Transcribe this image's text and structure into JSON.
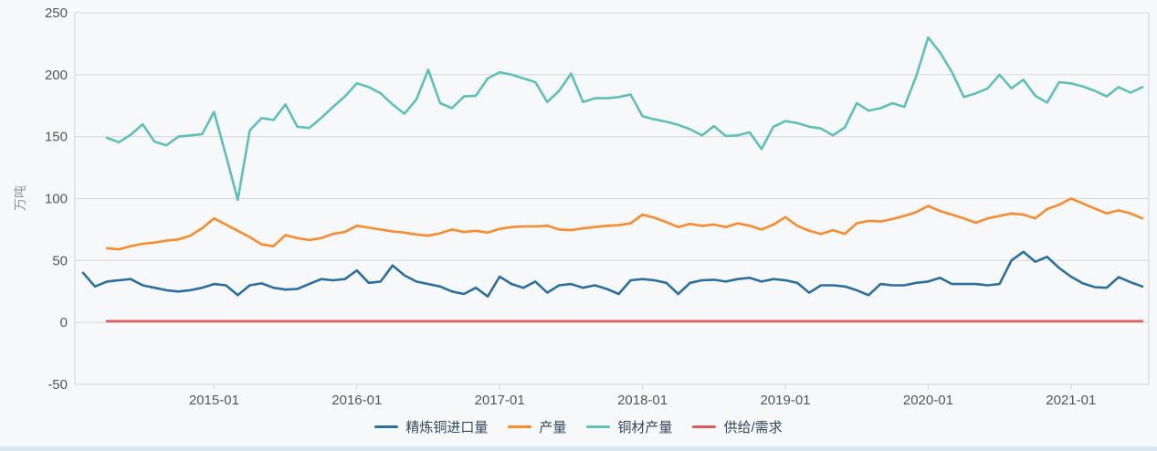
{
  "styles": {
    "background": "#f7f8fa",
    "grid_color": "#d7d7d7",
    "axis_color": "#ccd6e4",
    "tick_label_color": "#555555",
    "axis_title_color": "#90969c",
    "legend_text_color": "#33475b",
    "bottom_strip_color": "#dae5f2"
  },
  "chart_data": {
    "type": "line",
    "title": "",
    "grid": "horizontal",
    "legend_position": "bottom",
    "y_axis": {
      "label": "万吨",
      "min": -50,
      "max": 250,
      "tick_step": 50,
      "ticks": [
        250,
        200,
        150,
        100,
        50,
        0,
        -50
      ]
    },
    "x_axis": {
      "ticks": [
        "2015-01",
        "2016-01",
        "2017-01",
        "2018-01",
        "2019-01",
        "2020-01",
        "2021-01"
      ]
    },
    "months": [
      "2014-02",
      "2014-03",
      "2014-04",
      "2014-05",
      "2014-06",
      "2014-07",
      "2014-08",
      "2014-09",
      "2014-10",
      "2014-11",
      "2014-12",
      "2015-01",
      "2015-02",
      "2015-03",
      "2015-04",
      "2015-05",
      "2015-06",
      "2015-07",
      "2015-08",
      "2015-09",
      "2015-10",
      "2015-11",
      "2015-12",
      "2016-01",
      "2016-02",
      "2016-03",
      "2016-04",
      "2016-05",
      "2016-06",
      "2016-07",
      "2016-08",
      "2016-09",
      "2016-10",
      "2016-11",
      "2016-12",
      "2017-01",
      "2017-02",
      "2017-03",
      "2017-04",
      "2017-05",
      "2017-06",
      "2017-07",
      "2017-08",
      "2017-09",
      "2017-10",
      "2017-11",
      "2017-12",
      "2018-01",
      "2018-02",
      "2018-03",
      "2018-04",
      "2018-05",
      "2018-06",
      "2018-07",
      "2018-08",
      "2018-09",
      "2018-10",
      "2018-11",
      "2018-12",
      "2019-01",
      "2019-02",
      "2019-03",
      "2019-04",
      "2019-05",
      "2019-06",
      "2019-07",
      "2019-08",
      "2019-09",
      "2019-10",
      "2019-11",
      "2019-12",
      "2020-01",
      "2020-02",
      "2020-03",
      "2020-04",
      "2020-05",
      "2020-06",
      "2020-07",
      "2020-08",
      "2020-09",
      "2020-10",
      "2020-11",
      "2020-12",
      "2021-01",
      "2021-02",
      "2021-03",
      "2021-04",
      "2021-05",
      "2021-06",
      "2021-07"
    ],
    "series": [
      {
        "name": "精炼铜进口量",
        "color": "#2b6f9e",
        "values": [
          40,
          29,
          33,
          34,
          35,
          30,
          28,
          26,
          25,
          26,
          28,
          31,
          30,
          22,
          30,
          31.5,
          28,
          26.5,
          27,
          31,
          35,
          34,
          35,
          42,
          32,
          33,
          46,
          38,
          33,
          31,
          29,
          25,
          23,
          28,
          21,
          37,
          31,
          28,
          33,
          24,
          30,
          31,
          28,
          30,
          27,
          23,
          34,
          35,
          34,
          32,
          23,
          32,
          34,
          34.5,
          33,
          35,
          36,
          33,
          35,
          34,
          32,
          24,
          30,
          30,
          29,
          26,
          22,
          31,
          30,
          30,
          32,
          33,
          36,
          31,
          31,
          31,
          30,
          31,
          50,
          57,
          49,
          53,
          44,
          37,
          31.5,
          28.5,
          28,
          36.5,
          32.5,
          29
        ]
      },
      {
        "name": "产量",
        "color": "#f98b2c",
        "values": [
          null,
          null,
          60,
          59,
          61.5,
          63.5,
          64.5,
          66,
          67,
          70,
          76,
          84,
          79,
          74,
          69,
          63,
          61.5,
          70.5,
          68,
          66.5,
          68,
          71.5,
          73,
          78,
          76.5,
          75,
          73.5,
          72.5,
          71,
          70,
          72,
          75,
          73,
          74,
          72.5,
          75.5,
          77,
          77.5,
          77.5,
          78,
          75,
          74.5,
          76,
          77,
          78,
          78.5,
          80,
          87,
          84.5,
          81,
          77,
          79.5,
          78,
          79,
          77,
          80,
          78,
          75,
          79,
          85,
          78,
          74,
          71.5,
          74.5,
          71.5,
          80,
          82,
          81.5,
          83.5,
          86,
          89,
          94,
          90,
          87,
          84,
          80.5,
          84,
          86,
          88,
          87,
          84,
          91.5,
          95,
          100,
          96,
          92,
          88,
          90.5,
          88,
          84
        ]
      },
      {
        "name": "铜材产量",
        "color": "#5fc0ba",
        "values": [
          null,
          null,
          149,
          145.5,
          151.5,
          160,
          146,
          143,
          150,
          151,
          152,
          170,
          135,
          99,
          155,
          165,
          163.5,
          176,
          158,
          157,
          165,
          174,
          182.5,
          193,
          190,
          185,
          176,
          168.5,
          180,
          204,
          177,
          173,
          182.5,
          183,
          197,
          202,
          200,
          197,
          194,
          178,
          187,
          201,
          178,
          181,
          181,
          182,
          184,
          166.5,
          164,
          162,
          159.5,
          156,
          151,
          158.5,
          150.5,
          151,
          153.5,
          140,
          158,
          162.5,
          161,
          158,
          156.5,
          151,
          157.5,
          177,
          171,
          173,
          177,
          174,
          199,
          230,
          218,
          202,
          182,
          185,
          189,
          200,
          189,
          196,
          183,
          177.5,
          194,
          193,
          190.5,
          187,
          182.5,
          190,
          185.5,
          190
        ]
      },
      {
        "name": "供给/需求",
        "color": "#e25b5b",
        "values": [
          null,
          null,
          1,
          1,
          1,
          1,
          1,
          1,
          1,
          1,
          1,
          1,
          1,
          1,
          1,
          1,
          1,
          1,
          1,
          1,
          1,
          1,
          1,
          1,
          1,
          1,
          1,
          1,
          1,
          1,
          1,
          1,
          1,
          1,
          1,
          1,
          1,
          1,
          1,
          1,
          1,
          1,
          1,
          1,
          1,
          1,
          1,
          1,
          1,
          1,
          1,
          1,
          1,
          1,
          1,
          1,
          1,
          1,
          1,
          1,
          1,
          1,
          1,
          1,
          1,
          1,
          1,
          1,
          1,
          1,
          1,
          1,
          1,
          1,
          1,
          1,
          1,
          1,
          1,
          1,
          1,
          1,
          1,
          1,
          1,
          1,
          1,
          1,
          1,
          1
        ]
      }
    ]
  }
}
